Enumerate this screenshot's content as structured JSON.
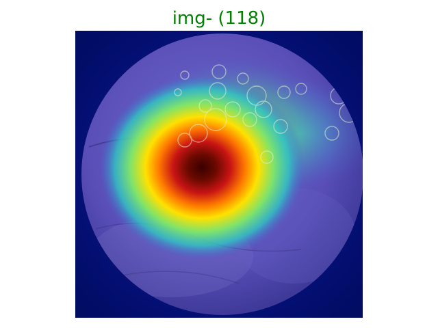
{
  "figure": {
    "title": "img- (118)",
    "title_color": "#008000",
    "background_color": "#ffffff"
  },
  "image": {
    "subject": "heatmap-overlay-on-circular-specimen",
    "colormap": "jet",
    "background_color": "#000a5c",
    "dish_color": "#5a4fb8",
    "hotspot_colors": [
      "#4a0000",
      "#c81414",
      "#ff7a00",
      "#ffe100",
      "#7fe36a",
      "#2fc7c4"
    ]
  }
}
